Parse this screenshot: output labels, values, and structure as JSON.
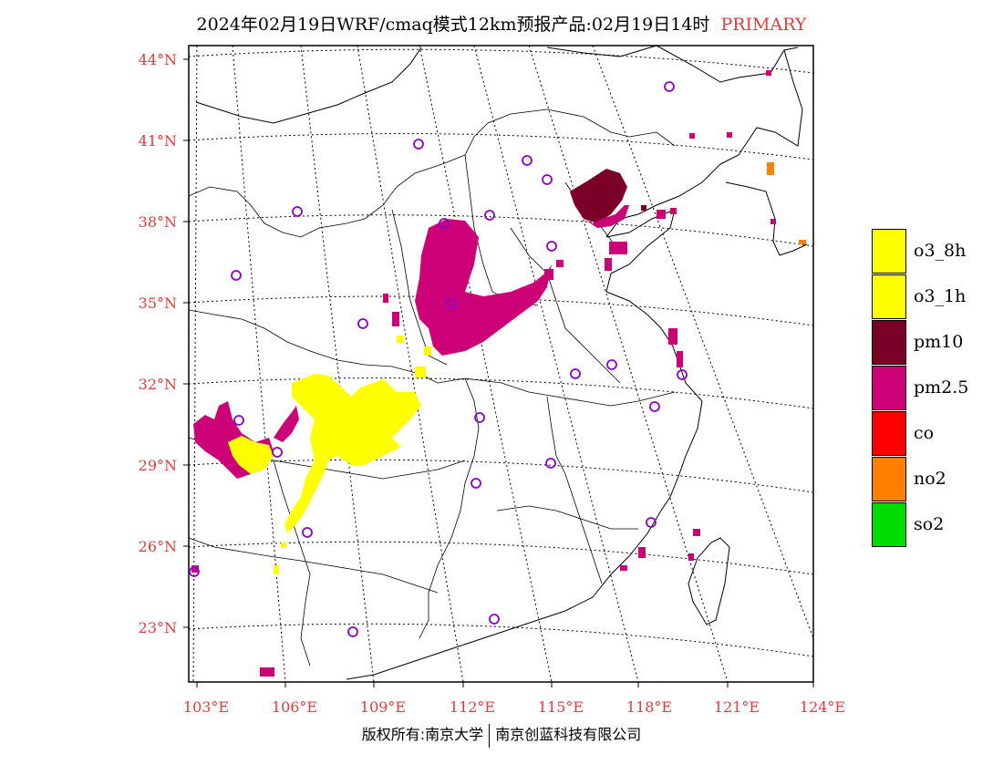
{
  "title": {
    "text": "2024年02月19日WRF/cmaq模式12km预报产品:02月19日14时",
    "tag": "PRIMARY"
  },
  "colors": {
    "axis_label": "#e53b3b",
    "o3_8h": "#ffff00",
    "o3_1h": "#ffff00",
    "pm10": "#7a0028",
    "pm25": "#cc0077",
    "co": "#ff0000",
    "no2": "#ff7f00",
    "so2": "#00dd00",
    "station": "#8b00cc"
  },
  "axes": {
    "lat_labels": [
      "44°N",
      "41°N",
      "38°N",
      "35°N",
      "32°N",
      "29°N",
      "26°N",
      "23°N"
    ],
    "lat_values": [
      44,
      41,
      38,
      35,
      32,
      29,
      26,
      23
    ],
    "lon_labels": [
      "103°E",
      "106°E",
      "109°E",
      "112°E",
      "115°E",
      "118°E",
      "121°E",
      "124°E"
    ],
    "lon_values": [
      103,
      106,
      109,
      112,
      115,
      118,
      121,
      124
    ]
  },
  "legend": [
    {
      "label": "o3_8h",
      "color": "#ffff00"
    },
    {
      "label": "o3_1h",
      "color": "#ffff00"
    },
    {
      "label": "pm10",
      "color": "#7a0028"
    },
    {
      "label": "pm2.5",
      "color": "#cc0077"
    },
    {
      "label": "co",
      "color": "#ff0000"
    },
    {
      "label": "no2",
      "color": "#ff7f00"
    },
    {
      "label": "so2",
      "color": "#00dd00"
    }
  ],
  "copyright": {
    "left": "版权所有:南京大学",
    "right": "南京创蓝科技有限公司"
  }
}
